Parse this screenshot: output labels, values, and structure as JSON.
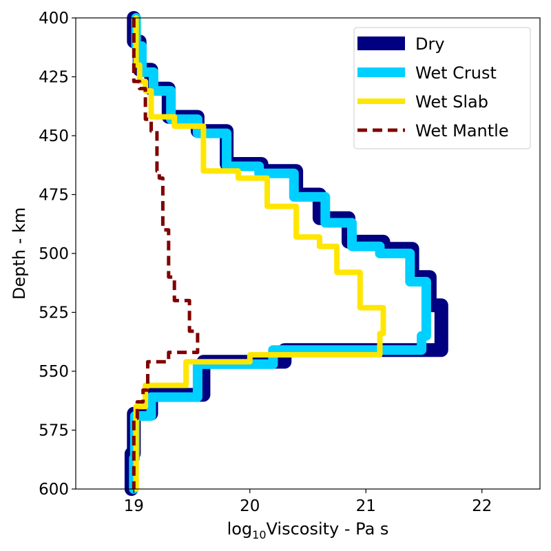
{
  "chart_data": {
    "type": "line",
    "xlabel_prefix": "log",
    "xlabel_subscript": "10",
    "xlabel_main": "Viscosity - Pa s",
    "ylabel": "Depth - km",
    "xlim": [
      18.5,
      22.5
    ],
    "ylim": [
      600,
      400
    ],
    "y_inverted": true,
    "grid": false,
    "legend_position": "top-right",
    "x_ticks": [
      "19",
      "20",
      "21",
      "22"
    ],
    "y_ticks": [
      "400",
      "425",
      "450",
      "475",
      "500",
      "525",
      "550",
      "575",
      "600"
    ],
    "series": [
      {
        "name": "Dry",
        "color": "#000080",
        "style": "solid-thick",
        "x": [
          19.0,
          19.0,
          19.05,
          19.05,
          19.15,
          19.15,
          19.3,
          19.3,
          19.55,
          19.55,
          19.8,
          19.8,
          20.1,
          20.1,
          20.4,
          20.4,
          20.6,
          20.6,
          20.85,
          20.85,
          21.15,
          21.15,
          21.4,
          21.4,
          21.55,
          21.55,
          21.65,
          21.65,
          20.3,
          20.3,
          19.6,
          19.6,
          19.15,
          19.15,
          19.0,
          19.0,
          18.98,
          18.98
        ],
        "y": [
          400,
          410,
          410,
          422,
          422,
          430,
          430,
          442,
          442,
          448,
          448,
          462,
          462,
          465,
          465,
          475,
          475,
          485,
          485,
          495,
          495,
          498,
          498,
          510,
          510,
          522,
          522,
          541,
          541,
          546,
          546,
          560,
          560,
          568,
          568,
          585,
          585,
          600
        ]
      },
      {
        "name": "Wet Crust",
        "color": "#00d0ff",
        "style": "solid-thick",
        "x": [
          19.02,
          19.02,
          19.07,
          19.07,
          19.17,
          19.17,
          19.32,
          19.32,
          19.55,
          19.55,
          19.8,
          19.8,
          20.08,
          20.08,
          20.38,
          20.38,
          20.65,
          20.65,
          20.88,
          20.88,
          21.12,
          21.12,
          21.38,
          21.38,
          21.52,
          21.52,
          21.48,
          21.48,
          20.2,
          20.2,
          19.55,
          19.55,
          19.15,
          19.15,
          19.01,
          19.01,
          19.0,
          19.0
        ],
        "y": [
          400,
          412,
          412,
          423,
          423,
          431,
          431,
          443,
          443,
          449,
          449,
          463,
          463,
          466,
          466,
          476,
          476,
          487,
          487,
          497,
          497,
          500,
          500,
          512,
          512,
          535,
          535,
          541,
          541,
          547,
          547,
          561,
          561,
          569,
          569,
          587,
          587,
          600
        ]
      },
      {
        "name": "Wet Slab",
        "color": "#ffe600",
        "style": "solid",
        "x": [
          19.02,
          19.02,
          19.05,
          19.05,
          19.1,
          19.1,
          19.15,
          19.15,
          19.35,
          19.35,
          19.6,
          19.6,
          19.9,
          19.9,
          20.15,
          20.15,
          20.4,
          20.4,
          20.6,
          20.6,
          20.75,
          20.75,
          20.95,
          20.95,
          21.15,
          21.15,
          21.12,
          21.12,
          20.0,
          20.0,
          19.45,
          19.45,
          19.1,
          19.1,
          19.02,
          19.02
        ],
        "y": [
          400,
          420,
          420,
          427,
          427,
          431,
          431,
          442,
          442,
          446,
          446,
          465,
          465,
          468,
          468,
          480,
          480,
          493,
          493,
          497,
          497,
          508,
          508,
          523,
          523,
          534,
          534,
          543,
          543,
          546,
          546,
          556,
          556,
          565,
          565,
          600
        ]
      },
      {
        "name": "Wet Mantle",
        "color": "#800000",
        "style": "dashed",
        "x": [
          19.0,
          19.0,
          19.05,
          19.05,
          19.1,
          19.1,
          19.15,
          19.15,
          19.2,
          19.2,
          19.22,
          19.22,
          19.25,
          19.25,
          19.3,
          19.3,
          19.35,
          19.35,
          19.48,
          19.48,
          19.55,
          19.55,
          19.3,
          19.3,
          19.12,
          19.12,
          19.08,
          19.08,
          19.03,
          19.03,
          19.0,
          19.0
        ],
        "y": [
          400,
          427,
          427,
          430,
          430,
          443,
          443,
          448,
          448,
          465,
          465,
          468,
          468,
          490,
          490,
          510,
          510,
          520,
          520,
          533,
          533,
          542,
          542,
          546,
          546,
          558,
          558,
          563,
          563,
          570,
          570,
          600
        ]
      }
    ]
  }
}
